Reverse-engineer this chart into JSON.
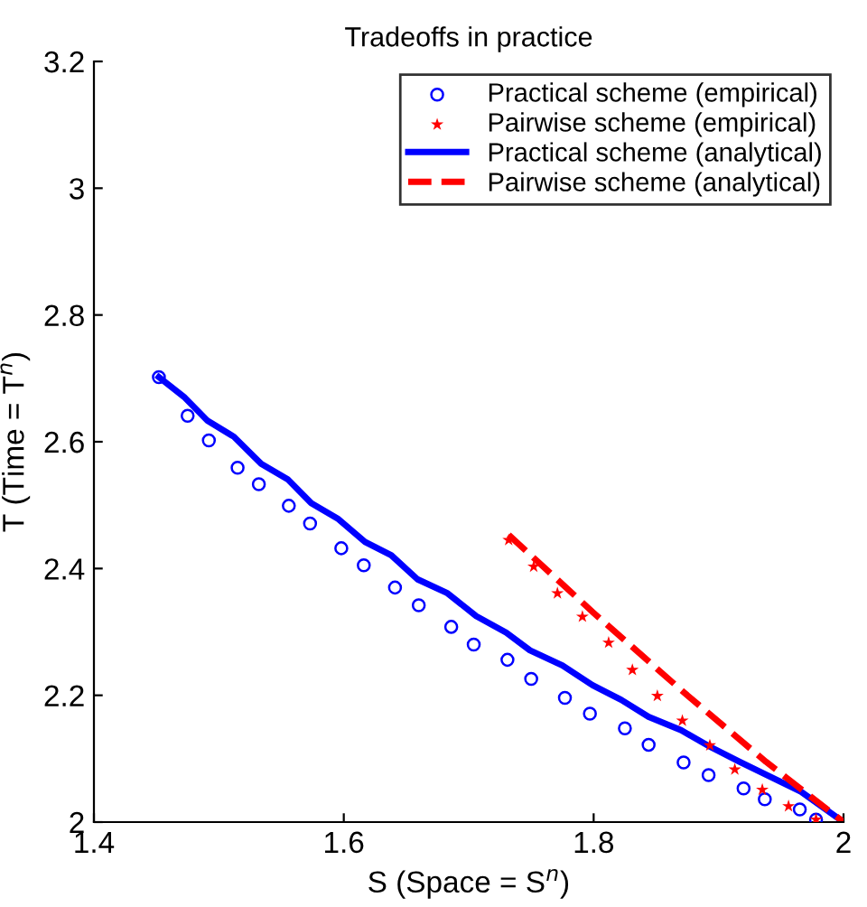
{
  "chart_data": {
    "type": "scatter",
    "title": "Tradeoffs in practice",
    "xlabel": "S (Space = S$^{n}$)",
    "ylabel": "T (Time = T$^{n}$)",
    "xlim": [
      1.4,
      2
    ],
    "ylim": [
      2,
      3.2
    ],
    "xticks": [
      1.4,
      1.6,
      1.8,
      2
    ],
    "yticks": [
      2,
      2.2,
      2.4,
      2.6,
      2.8,
      3,
      3.2
    ],
    "grid": false,
    "legend": "top right",
    "series": [
      {
        "name": "Practical scheme (empirical)",
        "marker": "circle",
        "color": "#0000ff",
        "x": [
          1.452,
          1.475,
          1.492,
          1.515,
          1.532,
          1.556,
          1.573,
          1.598,
          1.616,
          1.641,
          1.66,
          1.686,
          1.704,
          1.731,
          1.75,
          1.777,
          1.797,
          1.825,
          1.844,
          1.872,
          1.892,
          1.92,
          1.937,
          1.965,
          1.978
        ],
        "values": [
          2.702,
          2.641,
          2.602,
          2.559,
          2.533,
          2.499,
          2.471,
          2.432,
          2.405,
          2.37,
          2.342,
          2.308,
          2.28,
          2.256,
          2.226,
          2.196,
          2.171,
          2.148,
          2.122,
          2.094,
          2.074,
          2.053,
          2.036,
          2.02,
          2.004
        ]
      },
      {
        "name": "Pairwise scheme (empirical)",
        "marker": "star",
        "color": "#ff0000",
        "x": [
          1.732,
          1.752,
          1.771,
          1.791,
          1.812,
          1.831,
          1.851,
          1.871,
          1.893,
          1.913,
          1.935,
          1.956,
          1.978
        ],
        "values": [
          2.445,
          2.403,
          2.361,
          2.324,
          2.283,
          2.24,
          2.199,
          2.16,
          2.121,
          2.083,
          2.051,
          2.025,
          2.004
        ]
      },
      {
        "name": "Practical scheme (analytical)",
        "type": "line",
        "line_style": "solid",
        "color": "#0000ff",
        "x": [
          1.452,
          1.472,
          1.491,
          1.512,
          1.534,
          1.555,
          1.574,
          1.595,
          1.617,
          1.638,
          1.659,
          1.683,
          1.706,
          1.73,
          1.749,
          1.775,
          1.799,
          1.822,
          1.844,
          1.87,
          1.893,
          1.917,
          1.94,
          1.966,
          2.0
        ],
        "values": [
          2.702,
          2.671,
          2.633,
          2.608,
          2.565,
          2.541,
          2.503,
          2.479,
          2.442,
          2.421,
          2.383,
          2.361,
          2.325,
          2.299,
          2.271,
          2.247,
          2.216,
          2.193,
          2.166,
          2.145,
          2.119,
          2.095,
          2.073,
          2.048,
          2.0
        ]
      },
      {
        "name": "Pairwise scheme (analytical)",
        "type": "line",
        "line_style": "dashed",
        "color": "#ff0000",
        "x": [
          1.732,
          1.8,
          1.872,
          1.938,
          2.0
        ],
        "values": [
          2.453,
          2.33,
          2.205,
          2.095,
          2.0
        ]
      }
    ]
  }
}
